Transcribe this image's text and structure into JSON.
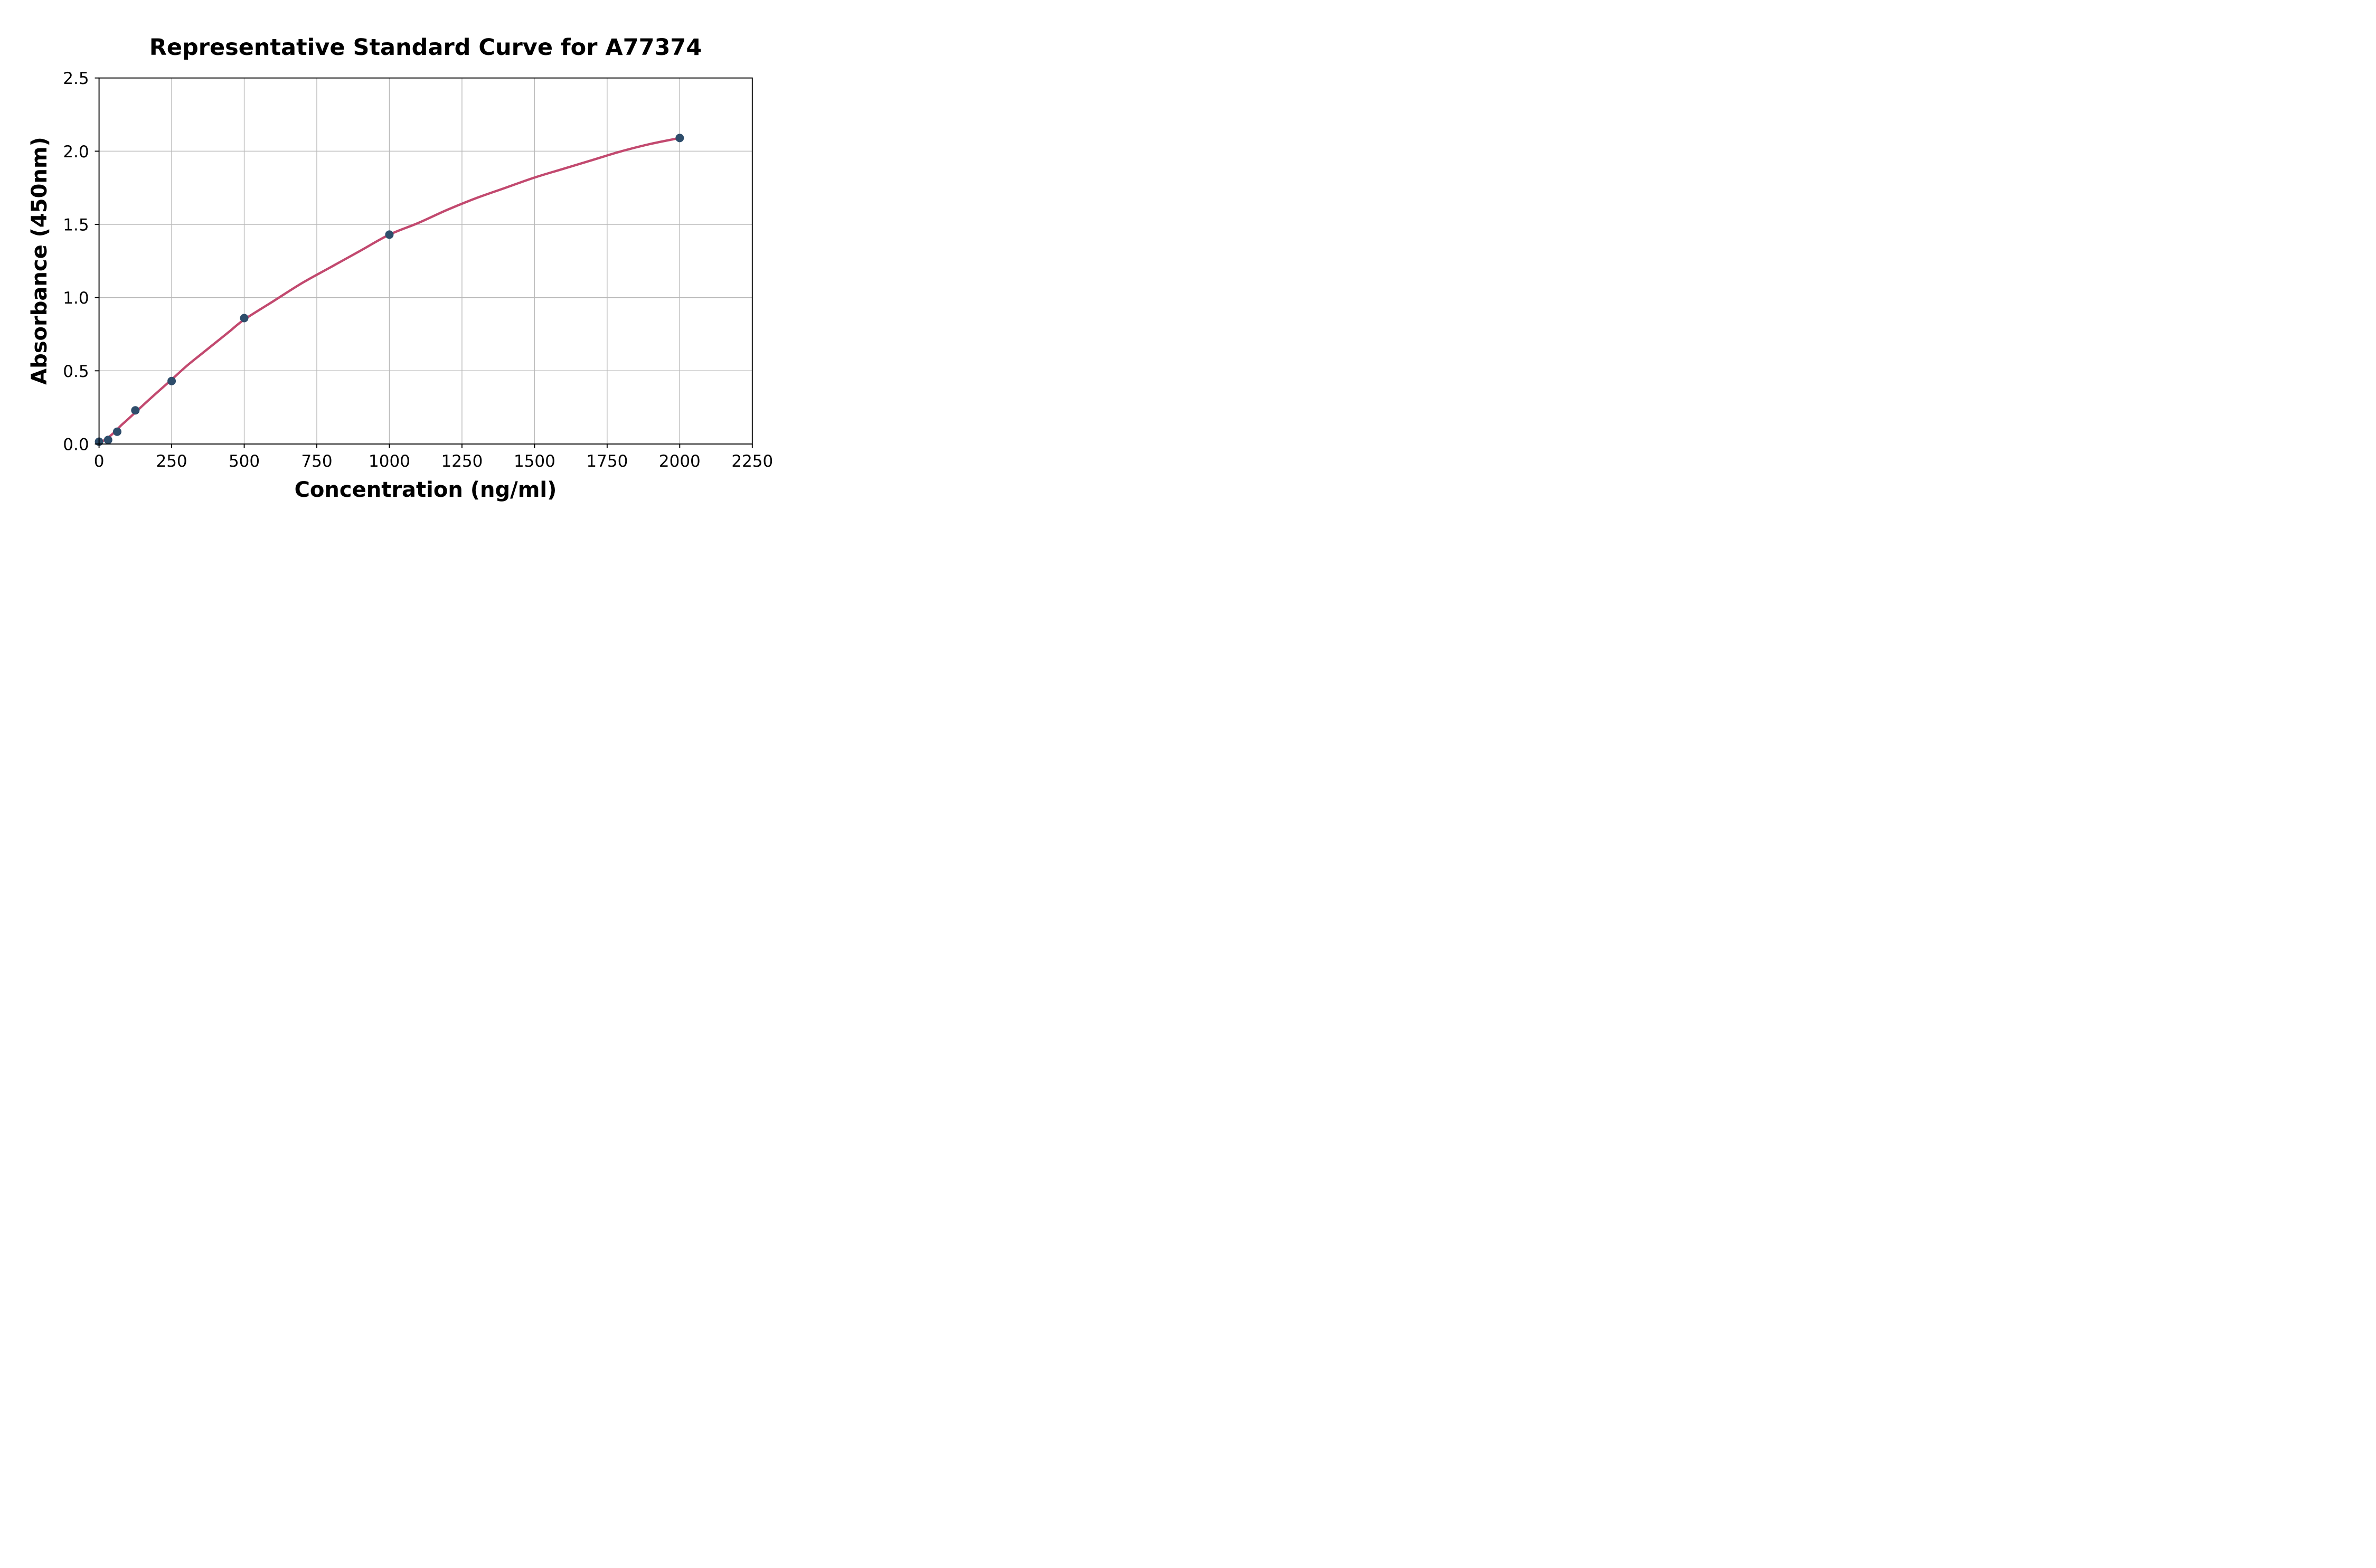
{
  "figure": {
    "background": "#ffffff"
  },
  "chart_data": {
    "type": "scatter",
    "title": "Representative Standard Curve for A77374",
    "xlabel": "Concentration (ng/ml)",
    "ylabel": "Absorbance (450nm)",
    "xlim": [
      0,
      2250
    ],
    "ylim": [
      0,
      2.5
    ],
    "grid": true,
    "legend_position": "none",
    "xticks": {
      "values": [
        0,
        250,
        500,
        750,
        1000,
        1250,
        1500,
        1750,
        2000,
        2250
      ],
      "labels": [
        "0",
        "250",
        "500",
        "750",
        "1000",
        "1250",
        "1500",
        "1750",
        "2000",
        "2250"
      ]
    },
    "yticks": {
      "values": [
        0,
        0.5,
        1.0,
        1.5,
        2.0,
        2.5
      ],
      "labels": [
        "0.0",
        "0.5",
        "1.0",
        "1.5",
        "2.0",
        "2.5"
      ]
    },
    "colors": {
      "marker": "#2e4d6b",
      "fit_line": "#c2496f",
      "grid": "#b9b9b9",
      "axis": "#000000",
      "background": "#ffffff"
    },
    "series": [
      {
        "name": "standard-points",
        "type": "scatter",
        "color": "#2e4d6b",
        "points": [
          {
            "x": 0,
            "y": 0.016
          },
          {
            "x": 31.25,
            "y": 0.028
          },
          {
            "x": 62.5,
            "y": 0.084
          },
          {
            "x": 125,
            "y": 0.23
          },
          {
            "x": 250,
            "y": 0.43
          },
          {
            "x": 500,
            "y": 0.86
          },
          {
            "x": 1000,
            "y": 1.43
          },
          {
            "x": 2000,
            "y": 2.09
          }
        ]
      },
      {
        "name": "4pl-fit-curve",
        "type": "line",
        "color": "#c2496f",
        "points": [
          [
            0,
            0.005
          ],
          [
            25,
            0.035
          ],
          [
            50,
            0.075
          ],
          [
            75,
            0.125
          ],
          [
            100,
            0.17
          ],
          [
            150,
            0.262
          ],
          [
            200,
            0.352
          ],
          [
            250,
            0.44
          ],
          [
            300,
            0.53
          ],
          [
            350,
            0.611
          ],
          [
            400,
            0.69
          ],
          [
            450,
            0.77
          ],
          [
            500,
            0.85
          ],
          [
            600,
            0.975
          ],
          [
            700,
            1.1
          ],
          [
            800,
            1.21
          ],
          [
            900,
            1.32
          ],
          [
            1000,
            1.43
          ],
          [
            1100,
            1.51
          ],
          [
            1200,
            1.6
          ],
          [
            1300,
            1.68
          ],
          [
            1400,
            1.75
          ],
          [
            1500,
            1.82
          ],
          [
            1600,
            1.88
          ],
          [
            1700,
            1.94
          ],
          [
            1800,
            2.0
          ],
          [
            1900,
            2.05
          ],
          [
            2000,
            2.09
          ]
        ]
      }
    ]
  }
}
